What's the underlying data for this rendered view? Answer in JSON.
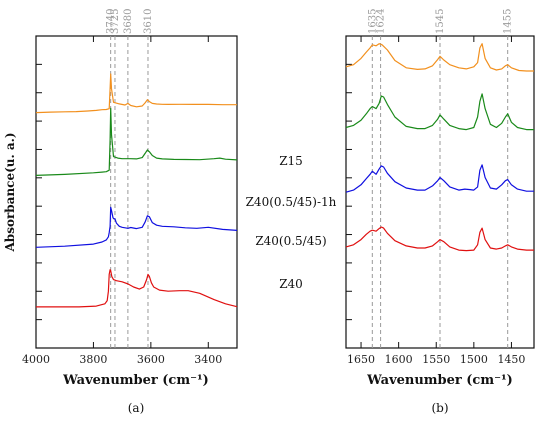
{
  "ylabel": "Absorbance(u. a.)",
  "colors": {
    "Z15": "#f2901e",
    "Z40(0.5/45)-1h": "#1a8a1a",
    "Z40(0.5/45)": "#1010e0",
    "Z40": "#e01010",
    "guide": "#9a9a9a"
  },
  "chart_data": [
    {
      "type": "line",
      "panel": "(a)",
      "xlabel": "Wavenumber (cm⁻¹)",
      "xlim": [
        4000,
        3300
      ],
      "xticks": [
        4000,
        3800,
        3600,
        3400
      ],
      "xtick_labels": [
        "4000",
        "3800",
        "3600",
        "3400"
      ],
      "peak_labels": [
        {
          "x": 3740,
          "label": "3740"
        },
        {
          "x": 3725,
          "label": "3725"
        },
        {
          "x": 3680,
          "label": "3680"
        },
        {
          "x": 3610,
          "label": "3610"
        }
      ],
      "sample_labels": [
        "Z15",
        "Z40(0.5/45)-1h",
        "Z40(0.5/45)",
        "Z40"
      ],
      "series": [
        {
          "name": "Z15",
          "x": [
            4000,
            3950,
            3900,
            3860,
            3820,
            3790,
            3770,
            3755,
            3745,
            3742,
            3740,
            3737,
            3730,
            3710,
            3690,
            3680,
            3670,
            3650,
            3630,
            3620,
            3612,
            3605,
            3595,
            3580,
            3560,
            3540,
            3500,
            3450,
            3400,
            3350,
            3300
          ],
          "y": [
            0.432,
            0.437,
            0.44,
            0.442,
            0.448,
            0.453,
            0.46,
            0.462,
            0.47,
            0.66,
            0.8,
            0.66,
            0.53,
            0.515,
            0.505,
            0.52,
            0.5,
            0.488,
            0.495,
            0.525,
            0.555,
            0.537,
            0.52,
            0.514,
            0.511,
            0.51,
            0.511,
            0.51,
            0.51,
            0.508,
            0.508
          ]
        },
        {
          "name": "Z40(0.5/45)-1h",
          "x": [
            4000,
            3900,
            3800,
            3770,
            3755,
            3745,
            3742,
            3740,
            3737,
            3730,
            3715,
            3700,
            3680,
            3670,
            3650,
            3630,
            3620,
            3612,
            3605,
            3595,
            3580,
            3560,
            3520,
            3480,
            3430,
            3380,
            3360,
            3340,
            3300
          ],
          "y": [
            0.31,
            0.32,
            0.335,
            0.342,
            0.346,
            0.36,
            0.65,
            0.95,
            0.7,
            0.49,
            0.475,
            0.47,
            0.47,
            0.47,
            0.468,
            0.48,
            0.52,
            0.553,
            0.535,
            0.5,
            0.475,
            0.468,
            0.463,
            0.462,
            0.46,
            0.47,
            0.475,
            0.465,
            0.458
          ]
        },
        {
          "name": "Z40(0.5/45)",
          "x": [
            4000,
            3900,
            3800,
            3770,
            3755,
            3748,
            3745,
            3742,
            3740,
            3737,
            3732,
            3728,
            3725,
            3720,
            3710,
            3700,
            3680,
            3670,
            3650,
            3630,
            3620,
            3612,
            3605,
            3595,
            3580,
            3560,
            3520,
            3480,
            3440,
            3400,
            3350,
            3300
          ],
          "y": [
            0.15,
            0.16,
            0.18,
            0.2,
            0.22,
            0.25,
            0.29,
            0.35,
            0.53,
            0.5,
            0.43,
            0.42,
            0.42,
            0.38,
            0.35,
            0.34,
            0.33,
            0.338,
            0.328,
            0.34,
            0.39,
            0.45,
            0.44,
            0.385,
            0.36,
            0.35,
            0.345,
            0.335,
            0.33,
            0.34,
            0.32,
            0.31
          ]
        },
        {
          "name": "Z40",
          "x": [
            4000,
            3850,
            3790,
            3760,
            3752,
            3748,
            3745,
            3742,
            3740,
            3736,
            3730,
            3720,
            3700,
            3680,
            3660,
            3640,
            3625,
            3615,
            3610,
            3605,
            3598,
            3590,
            3570,
            3540,
            3500,
            3470,
            3430,
            3380,
            3340,
            3300
          ],
          "y": [
            0.01,
            0.01,
            0.018,
            0.04,
            0.07,
            0.16,
            0.32,
            0.365,
            0.355,
            0.3,
            0.27,
            0.26,
            0.25,
            0.23,
            0.2,
            0.18,
            0.2,
            0.27,
            0.32,
            0.3,
            0.24,
            0.2,
            0.17,
            0.16,
            0.165,
            0.165,
            0.14,
            0.08,
            0.04,
            0.012
          ]
        }
      ]
    },
    {
      "type": "line",
      "panel": "(b)",
      "xlabel": "Wavenumber (cm⁻¹)",
      "xlim": [
        1670,
        1420
      ],
      "xticks": [
        1650,
        1600,
        1550,
        1500,
        1450
      ],
      "xtick_labels": [
        "1650",
        "1600",
        "1550",
        "1500",
        "1450"
      ],
      "peak_labels": [
        {
          "x": 1635,
          "label": "1635"
        },
        {
          "x": 1624,
          "label": "1624"
        },
        {
          "x": 1545,
          "label": "1545"
        },
        {
          "x": 1455,
          "label": "1455"
        }
      ],
      "series": [
        {
          "name": "Z15",
          "x": [
            1670,
            1660,
            1650,
            1643,
            1638,
            1635,
            1630,
            1626,
            1622,
            1615,
            1605,
            1590,
            1575,
            1565,
            1555,
            1548,
            1545,
            1540,
            1532,
            1520,
            1510,
            1500,
            1495,
            1492,
            1489,
            1485,
            1478,
            1470,
            1463,
            1458,
            1455,
            1450,
            1440,
            1430,
            1420
          ],
          "y": [
            0.64,
            0.66,
            0.72,
            0.78,
            0.82,
            0.85,
            0.84,
            0.86,
            0.85,
            0.8,
            0.7,
            0.63,
            0.615,
            0.62,
            0.65,
            0.71,
            0.74,
            0.705,
            0.66,
            0.63,
            0.62,
            0.64,
            0.68,
            0.82,
            0.86,
            0.72,
            0.63,
            0.61,
            0.62,
            0.65,
            0.66,
            0.63,
            0.605,
            0.6,
            0.6
          ]
        },
        {
          "name": "Z40(0.5/45)-1h",
          "x": [
            1670,
            1660,
            1650,
            1643,
            1638,
            1635,
            1630,
            1626,
            1623,
            1620,
            1615,
            1605,
            1590,
            1575,
            1565,
            1555,
            1548,
            1545,
            1540,
            1532,
            1520,
            1510,
            1500,
            1495,
            1492,
            1489,
            1485,
            1478,
            1470,
            1463,
            1458,
            1455,
            1450,
            1442,
            1430,
            1420
          ],
          "y": [
            0.5,
            0.52,
            0.57,
            0.63,
            0.68,
            0.7,
            0.68,
            0.73,
            0.8,
            0.79,
            0.72,
            0.6,
            0.51,
            0.49,
            0.49,
            0.52,
            0.58,
            0.62,
            0.58,
            0.52,
            0.49,
            0.48,
            0.5,
            0.6,
            0.75,
            0.82,
            0.68,
            0.53,
            0.5,
            0.54,
            0.6,
            0.63,
            0.55,
            0.5,
            0.48,
            0.48
          ]
        },
        {
          "name": "Z40(0.5/45)",
          "x": [
            1670,
            1660,
            1650,
            1643,
            1638,
            1635,
            1630,
            1626,
            1623,
            1620,
            1615,
            1605,
            1590,
            1575,
            1565,
            1555,
            1548,
            1545,
            1540,
            1532,
            1520,
            1512,
            1505,
            1500,
            1495,
            1492,
            1489,
            1485,
            1478,
            1470,
            1463,
            1458,
            1455,
            1450,
            1442,
            1430,
            1420
          ],
          "y": [
            0.36,
            0.38,
            0.43,
            0.49,
            0.53,
            0.56,
            0.53,
            0.58,
            0.61,
            0.6,
            0.54,
            0.46,
            0.4,
            0.38,
            0.38,
            0.42,
            0.47,
            0.5,
            0.47,
            0.41,
            0.38,
            0.39,
            0.385,
            0.38,
            0.41,
            0.57,
            0.62,
            0.5,
            0.4,
            0.39,
            0.43,
            0.47,
            0.48,
            0.43,
            0.39,
            0.37,
            0.37
          ]
        },
        {
          "name": "Z40",
          "x": [
            1670,
            1660,
            1650,
            1643,
            1638,
            1635,
            1630,
            1626,
            1623,
            1620,
            1615,
            1605,
            1590,
            1575,
            1565,
            1555,
            1548,
            1545,
            1540,
            1532,
            1520,
            1510,
            1500,
            1495,
            1492,
            1489,
            1485,
            1478,
            1470,
            1463,
            1458,
            1455,
            1450,
            1442,
            1430,
            1420
          ],
          "y": [
            0.21,
            0.23,
            0.28,
            0.33,
            0.36,
            0.37,
            0.36,
            0.385,
            0.4,
            0.39,
            0.34,
            0.27,
            0.22,
            0.2,
            0.2,
            0.22,
            0.26,
            0.28,
            0.26,
            0.21,
            0.18,
            0.175,
            0.18,
            0.23,
            0.35,
            0.39,
            0.28,
            0.2,
            0.19,
            0.2,
            0.22,
            0.23,
            0.21,
            0.19,
            0.18,
            0.18
          ]
        }
      ]
    }
  ]
}
